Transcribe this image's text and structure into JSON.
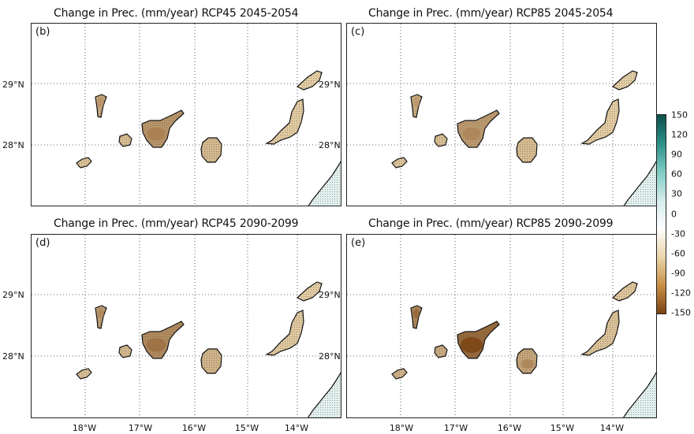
{
  "panels": [
    {
      "letter": "(b)",
      "title": "Change in Prec. (mm/year) RCP45 2045-2054",
      "intensity": 0.6
    },
    {
      "letter": "(c)",
      "title": "Change in Prec. (mm/year) RCP85 2045-2054",
      "intensity": 0.55
    },
    {
      "letter": "(d)",
      "title": "Change in Prec. (mm/year) RCP45 2090-2099",
      "intensity": 0.7
    },
    {
      "letter": "(e)",
      "title": "Change in Prec. (mm/year) RCP85 2090-2099",
      "intensity": 1.0
    }
  ],
  "axes": {
    "lat_labels": [
      "29°N",
      "28°N"
    ],
    "lon_labels": [
      "18°W",
      "17°W",
      "16°W",
      "15°W",
      "14°W"
    ]
  },
  "colorbar": {
    "ticks": [
      "150",
      "120",
      "90",
      "60",
      "30",
      "0",
      "-30",
      "-60",
      "-90",
      "-120",
      "-150"
    ],
    "colors": [
      "#0e4f4a",
      "#2a8f86",
      "#7fcdc4",
      "#d3ecea",
      "#ffffff",
      "#ecd7ae",
      "#c98f45",
      "#7a4413"
    ]
  }
}
